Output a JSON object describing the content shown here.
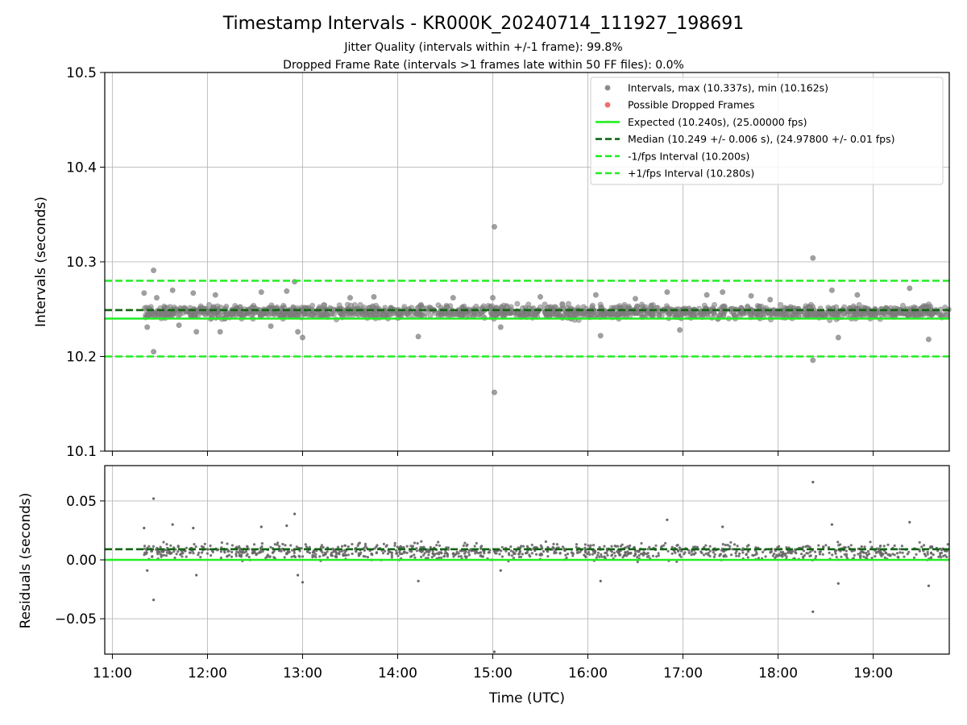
{
  "chart_data": {
    "type": "scatter",
    "title": "Timestamp Intervals - KR000K_20240714_111927_198691",
    "subtitles": [
      "Jitter Quality (intervals within +/-1 frame): 99.8%",
      "Dropped Frame Rate (intervals >1 frames late within 50 FF files): 0.0%"
    ],
    "xlabel": "Time (UTC)",
    "x_ticks": [
      "11:00",
      "12:00",
      "13:00",
      "14:00",
      "15:00",
      "16:00",
      "17:00",
      "18:00",
      "19:00"
    ],
    "xlim_hours": [
      10.92,
      19.8
    ],
    "grid": true,
    "legend_placement": "top-right",
    "panels": [
      {
        "name": "intervals",
        "ylabel": "Intervals (seconds)",
        "ylim": [
          10.1,
          10.5
        ],
        "y_ticks": [
          "10.1",
          "10.2",
          "10.3",
          "10.4",
          "10.5"
        ],
        "hlines": [
          {
            "label": "Expected (10.240s), (25.00000 fps)",
            "y": 10.24,
            "color": "#22ee22",
            "style": "solid"
          },
          {
            "label": "Median (10.249 +/- 0.006 s), (24.97800 +/- 0.01 fps)",
            "y": 10.249,
            "color": "#116611",
            "style": "dashed"
          },
          {
            "label": "-1/fps Interval (10.200s)",
            "y": 10.2,
            "color": "#22ee22",
            "style": "dashed"
          },
          {
            "label": "+1/fps Interval (10.280s)",
            "y": 10.28,
            "color": "#22ee22",
            "style": "dashed"
          }
        ],
        "series": [
          {
            "name": "Intervals, max (10.337s), min (10.162s)",
            "color": "#808080",
            "x_range": [
              "11:20",
              "19:48"
            ],
            "typical_band": [
              10.237,
              10.257
            ],
            "outliers": [
              {
                "x": "11:20",
                "y": 10.267
              },
              {
                "x": "11:22",
                "y": 10.231
              },
              {
                "x": "11:26",
                "y": 10.291
              },
              {
                "x": "11:26",
                "y": 10.205
              },
              {
                "x": "11:28",
                "y": 10.262
              },
              {
                "x": "11:38",
                "y": 10.27
              },
              {
                "x": "11:42",
                "y": 10.233
              },
              {
                "x": "11:51",
                "y": 10.267
              },
              {
                "x": "11:53",
                "y": 10.226
              },
              {
                "x": "12:05",
                "y": 10.265
              },
              {
                "x": "12:08",
                "y": 10.226
              },
              {
                "x": "12:34",
                "y": 10.268
              },
              {
                "x": "12:40",
                "y": 10.232
              },
              {
                "x": "12:50",
                "y": 10.269
              },
              {
                "x": "12:55",
                "y": 10.279
              },
              {
                "x": "12:57",
                "y": 10.226
              },
              {
                "x": "13:00",
                "y": 10.22
              },
              {
                "x": "13:30",
                "y": 10.262
              },
              {
                "x": "13:45",
                "y": 10.263
              },
              {
                "x": "14:13",
                "y": 10.221
              },
              {
                "x": "14:35",
                "y": 10.262
              },
              {
                "x": "15:00",
                "y": 10.262
              },
              {
                "x": "15:01",
                "y": 10.337
              },
              {
                "x": "15:01",
                "y": 10.162
              },
              {
                "x": "15:05",
                "y": 10.231
              },
              {
                "x": "15:30",
                "y": 10.263
              },
              {
                "x": "16:05",
                "y": 10.265
              },
              {
                "x": "16:08",
                "y": 10.222
              },
              {
                "x": "16:30",
                "y": 10.261
              },
              {
                "x": "16:50",
                "y": 10.268
              },
              {
                "x": "16:58",
                "y": 10.228
              },
              {
                "x": "17:15",
                "y": 10.265
              },
              {
                "x": "17:25",
                "y": 10.268
              },
              {
                "x": "17:43",
                "y": 10.264
              },
              {
                "x": "17:55",
                "y": 10.26
              },
              {
                "x": "18:22",
                "y": 10.304
              },
              {
                "x": "18:22",
                "y": 10.196
              },
              {
                "x": "18:34",
                "y": 10.27
              },
              {
                "x": "18:38",
                "y": 10.22
              },
              {
                "x": "18:50",
                "y": 10.265
              },
              {
                "x": "19:23",
                "y": 10.272
              },
              {
                "x": "19:35",
                "y": 10.218
              }
            ]
          },
          {
            "name": "Possible Dropped Frames",
            "color": "#f06060",
            "points": []
          }
        ]
      },
      {
        "name": "residuals",
        "ylabel": "Residuals (seconds)",
        "ylim": [
          -0.08,
          0.08
        ],
        "y_ticks": [
          "−0.05",
          "0.00",
          "0.05"
        ],
        "hlines": [
          {
            "y": 0.009,
            "color": "#116611",
            "style": "dashed"
          },
          {
            "y": 0.0,
            "color": "#22ee22",
            "style": "solid"
          }
        ],
        "series": [
          {
            "color": "#666666",
            "x_range": [
              "11:20",
              "19:48"
            ],
            "typical_band": [
              -0.003,
              0.017
            ],
            "outliers": [
              {
                "x": "11:20",
                "y": 0.027
              },
              {
                "x": "11:22",
                "y": -0.009
              },
              {
                "x": "11:26",
                "y": 0.052
              },
              {
                "x": "11:26",
                "y": -0.034
              },
              {
                "x": "11:38",
                "y": 0.03
              },
              {
                "x": "11:51",
                "y": 0.027
              },
              {
                "x": "11:53",
                "y": -0.013
              },
              {
                "x": "12:34",
                "y": 0.028
              },
              {
                "x": "12:50",
                "y": 0.029
              },
              {
                "x": "12:55",
                "y": 0.039
              },
              {
                "x": "12:57",
                "y": -0.013
              },
              {
                "x": "13:00",
                "y": -0.019
              },
              {
                "x": "14:13",
                "y": -0.018
              },
              {
                "x": "15:01",
                "y": -0.078
              },
              {
                "x": "15:05",
                "y": -0.009
              },
              {
                "x": "16:08",
                "y": -0.018
              },
              {
                "x": "16:50",
                "y": 0.034
              },
              {
                "x": "17:25",
                "y": 0.028
              },
              {
                "x": "18:22",
                "y": 0.066
              },
              {
                "x": "18:22",
                "y": -0.044
              },
              {
                "x": "18:34",
                "y": 0.03
              },
              {
                "x": "18:38",
                "y": -0.02
              },
              {
                "x": "19:23",
                "y": 0.032
              },
              {
                "x": "19:35",
                "y": -0.022
              }
            ]
          }
        ]
      }
    ]
  }
}
